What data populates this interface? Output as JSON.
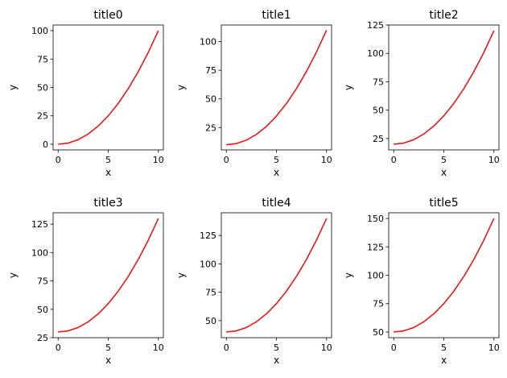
{
  "colors": {
    "line": "#e31a1c",
    "axes": "#000000",
    "background": "#ffffff"
  },
  "chart_data": [
    {
      "type": "line",
      "title": "title0",
      "xlabel": "x",
      "ylabel": "y",
      "xticks": [
        0,
        5,
        10
      ],
      "yticks": [
        0,
        25,
        50,
        75,
        100
      ],
      "xlim": [
        -0.5,
        10.5
      ],
      "ylim": [
        -5,
        105
      ],
      "series": [
        {
          "x": [
            0,
            1,
            2,
            3,
            4,
            5,
            6,
            7,
            8,
            9,
            10
          ],
          "values": [
            0,
            1,
            4,
            9,
            16,
            25,
            36,
            49,
            64,
            81,
            100
          ]
        }
      ]
    },
    {
      "type": "line",
      "title": "title1",
      "xlabel": "x",
      "ylabel": "y",
      "xticks": [
        0,
        5,
        10
      ],
      "yticks": [
        25,
        50,
        75,
        100
      ],
      "xlim": [
        -0.5,
        10.5
      ],
      "ylim": [
        5.5,
        114.5
      ],
      "series": [
        {
          "x": [
            0,
            1,
            2,
            3,
            4,
            5,
            6,
            7,
            8,
            9,
            10
          ],
          "values": [
            10,
            11,
            14,
            19,
            26,
            35,
            46,
            59,
            74,
            91,
            110
          ]
        }
      ]
    },
    {
      "type": "line",
      "title": "title2",
      "xlabel": "x",
      "ylabel": "y",
      "xticks": [
        0,
        5,
        10
      ],
      "yticks": [
        25,
        50,
        75,
        100,
        125
      ],
      "xlim": [
        -0.5,
        10.5
      ],
      "ylim": [
        15,
        125
      ],
      "series": [
        {
          "x": [
            0,
            1,
            2,
            3,
            4,
            5,
            6,
            7,
            8,
            9,
            10
          ],
          "values": [
            20,
            21,
            24,
            29,
            36,
            45,
            56,
            69,
            84,
            101,
            120
          ]
        }
      ]
    },
    {
      "type": "line",
      "title": "title3",
      "xlabel": "x",
      "ylabel": "y",
      "xticks": [
        0,
        5,
        10
      ],
      "yticks": [
        25,
        50,
        75,
        100,
        125
      ],
      "xlim": [
        -0.5,
        10.5
      ],
      "ylim": [
        25,
        135
      ],
      "series": [
        {
          "x": [
            0,
            1,
            2,
            3,
            4,
            5,
            6,
            7,
            8,
            9,
            10
          ],
          "values": [
            30,
            31,
            34,
            39,
            46,
            55,
            66,
            79,
            94,
            111,
            130
          ]
        }
      ]
    },
    {
      "type": "line",
      "title": "title4",
      "xlabel": "x",
      "ylabel": "y",
      "xticks": [
        0,
        5,
        10
      ],
      "yticks": [
        50,
        75,
        100,
        125
      ],
      "xlim": [
        -0.5,
        10.5
      ],
      "ylim": [
        35,
        145
      ],
      "series": [
        {
          "x": [
            0,
            1,
            2,
            3,
            4,
            5,
            6,
            7,
            8,
            9,
            10
          ],
          "values": [
            40,
            41,
            44,
            49,
            56,
            65,
            76,
            89,
            104,
            121,
            140
          ]
        }
      ]
    },
    {
      "type": "line",
      "title": "title5",
      "xlabel": "x",
      "ylabel": "y",
      "xticks": [
        0,
        5,
        10
      ],
      "yticks": [
        50,
        75,
        100,
        125,
        150
      ],
      "xlim": [
        -0.5,
        10.5
      ],
      "ylim": [
        45,
        155
      ],
      "series": [
        {
          "x": [
            0,
            1,
            2,
            3,
            4,
            5,
            6,
            7,
            8,
            9,
            10
          ],
          "values": [
            50,
            51,
            54,
            59,
            66,
            75,
            86,
            99,
            114,
            131,
            150
          ]
        }
      ]
    }
  ]
}
